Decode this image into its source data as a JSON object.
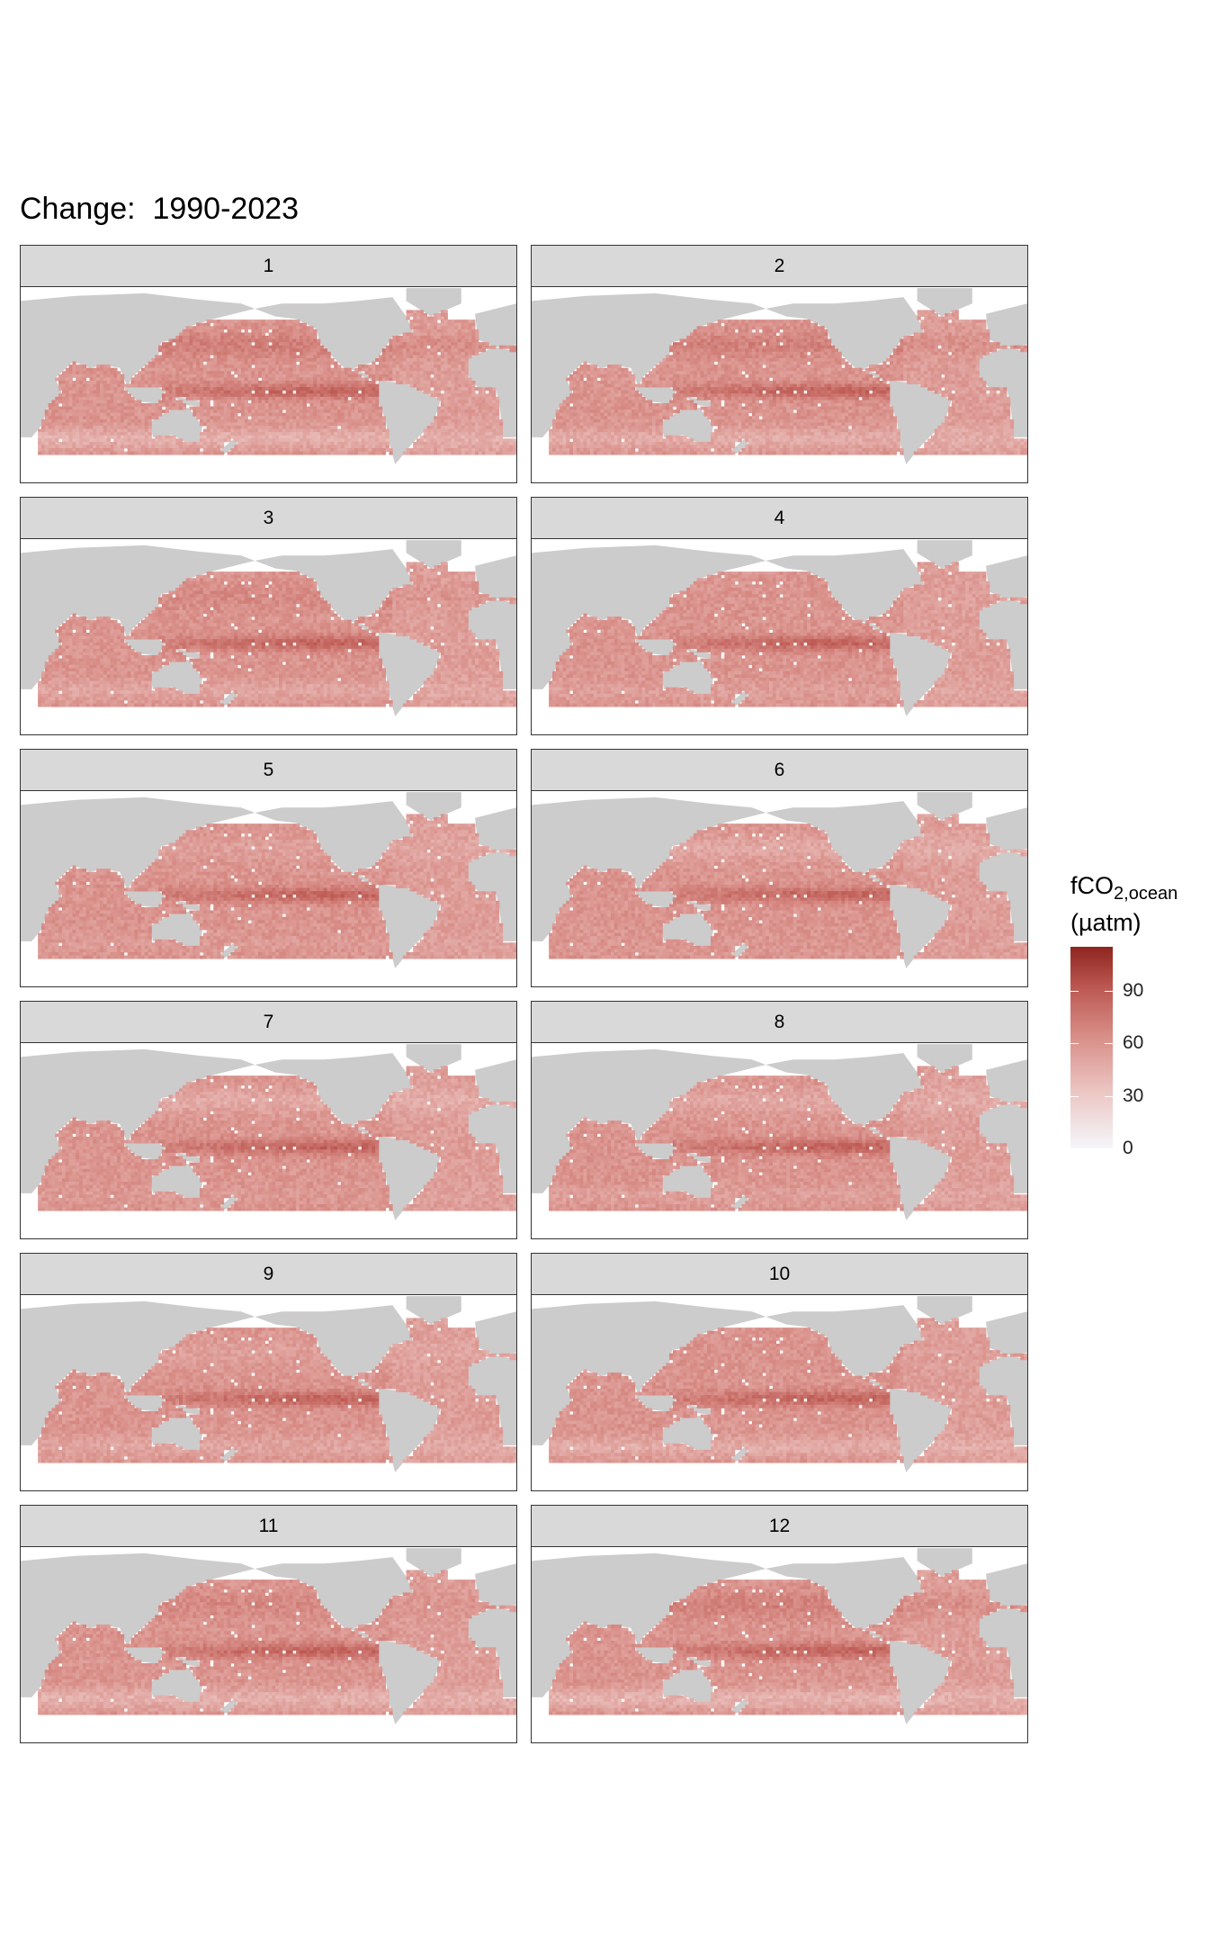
{
  "title_prefix": "Change:",
  "title_years": "1990-2023",
  "legend": {
    "variable": "fCO",
    "subscript": "2,ocean",
    "unit": "(µatm)",
    "ticks": [
      "0",
      "30",
      "60",
      "90"
    ]
  },
  "chart_data": {
    "type": "heatmap",
    "title": "Change:  1990-2023",
    "facet_by": "month",
    "facets": [
      "1",
      "2",
      "3",
      "4",
      "5",
      "6",
      "7",
      "8",
      "9",
      "10",
      "11",
      "12"
    ],
    "colorbar": {
      "label": "fCO2,ocean (µatm)",
      "ticks": [
        0,
        30,
        60,
        90
      ],
      "range": [
        0,
        115
      ],
      "low_color": "#f5f6fb",
      "high_color": "#8e251f"
    },
    "land_color": "#cccccc",
    "typical_values": {
      "pacific_background": 60,
      "equatorial_band": 85,
      "indian_ocean": 60,
      "atlantic": 55,
      "southern_band": 45
    }
  }
}
